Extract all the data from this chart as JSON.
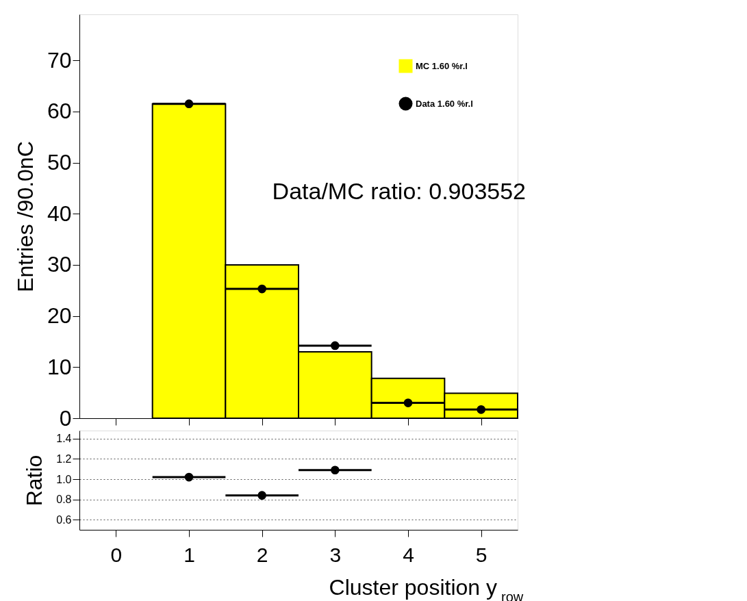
{
  "chart_data": [
    {
      "type": "histogram",
      "ylabel": "Entries /90.0nC",
      "bins": [
        -0.5,
        0.5,
        1.5,
        2.5,
        3.5,
        4.5,
        5.5
      ],
      "series": [
        {
          "name": "MC 1.60 %r.l",
          "type": "histogram",
          "color": "#ffff00",
          "values": [
            0,
            61.5,
            30,
            13,
            7.8,
            4.9
          ]
        },
        {
          "name": "Data 1.60 %r.l",
          "type": "scatter",
          "color": "#000000",
          "x": [
            1,
            2,
            3,
            4,
            5
          ],
          "values": [
            61.5,
            25.3,
            14.2,
            3,
            1.7
          ],
          "xerrors": [
            0.5,
            0.5,
            0.5,
            0.5,
            0.5
          ]
        }
      ],
      "xlim": [
        -0.5,
        5.5
      ],
      "xticks": [
        0,
        1,
        2,
        3,
        4,
        5
      ],
      "ylim": [
        0,
        79
      ],
      "yticks": [
        0,
        10,
        20,
        30,
        40,
        50,
        60,
        70
      ],
      "tick_labels": "y",
      "legend": "top right",
      "grid": false,
      "marker": "circle",
      "annotations": [
        "Data/MC ratio: 0.903552"
      ]
    },
    {
      "type": "scatter",
      "ylabel": "Ratio",
      "xlabel": "Cluster position y$_{row}$",
      "x": [
        1,
        2,
        3
      ],
      "values": [
        1.02,
        0.84,
        1.09
      ],
      "xerrors": [
        0.5,
        0.5,
        0.5
      ],
      "color": "#000000",
      "xlim": [
        -0.5,
        5.5
      ],
      "xticks": [
        0,
        1,
        2,
        3,
        4,
        5
      ],
      "ylim": [
        0.5,
        1.48
      ],
      "yticks": [
        {
          "value": 0.6,
          "label": "0.6"
        },
        {
          "value": 0.8,
          "label": "0.8"
        },
        {
          "value": 1.0,
          "label": "1.0"
        },
        {
          "value": 1.2,
          "label": "1.2"
        },
        {
          "value": 1.4,
          "label": "1.4"
        }
      ],
      "grid": "y",
      "marker": "circle"
    }
  ]
}
